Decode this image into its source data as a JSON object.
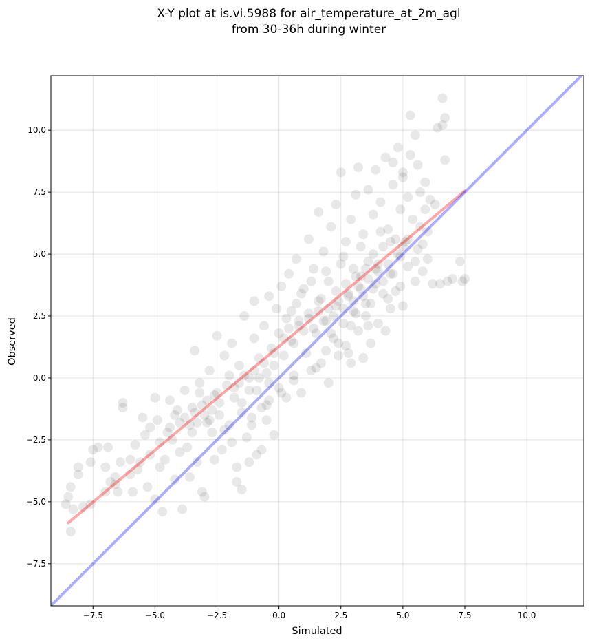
{
  "chart_data": {
    "type": "scatter",
    "title": "X-Y plot at is.vi.5988 for air_temperature_at_2m_agl",
    "subtitle": "from 30-36h during winter",
    "xlabel": "Simulated",
    "ylabel": "Observed",
    "xlim": [
      -9.2,
      12.3
    ],
    "ylim": [
      -9.2,
      12.2
    ],
    "x_ticks": [
      -7.5,
      -5.0,
      -2.5,
      0.0,
      2.5,
      5.0,
      7.5,
      10.0
    ],
    "y_ticks": [
      -7.5,
      -5.0,
      -2.5,
      0.0,
      2.5,
      5.0,
      7.5,
      10.0
    ],
    "x_tick_labels": [
      "−7.5",
      "−5.0",
      "−2.5",
      "0.0",
      "2.5",
      "5.0",
      "7.5",
      "10.0"
    ],
    "y_tick_labels": [
      "−7.5",
      "−5.0",
      "−2.5",
      "0.0",
      "2.5",
      "5.0",
      "7.5",
      "10.0"
    ],
    "grid": true,
    "marker_color": "#000000",
    "marker_alpha": 0.09,
    "fit_line": {
      "color": "#ff0000",
      "alpha": 0.35,
      "x": [
        -8.5,
        7.5
      ],
      "y": [
        -5.85,
        7.55
      ]
    },
    "identity_line": {
      "color": "#0000ff",
      "alpha": 0.33,
      "x": [
        -9.2,
        12.3
      ],
      "y": [
        -9.2,
        12.3
      ]
    },
    "points": [
      [
        -8.6,
        -5.1
      ],
      [
        -8.4,
        -6.2
      ],
      [
        -8.5,
        -4.8
      ],
      [
        -8.3,
        -5.3
      ],
      [
        -8.1,
        -3.9
      ],
      [
        -8.1,
        -3.6
      ],
      [
        -8.4,
        -4.4
      ],
      [
        -7.9,
        -5.2
      ],
      [
        -7.6,
        -3.4
      ],
      [
        -7.5,
        -2.9
      ],
      [
        -7.3,
        -2.8
      ],
      [
        -7.0,
        -3.6
      ],
      [
        -6.9,
        -2.8
      ],
      [
        -6.8,
        -4.2
      ],
      [
        -6.6,
        -4.0
      ],
      [
        -6.5,
        -4.6
      ],
      [
        -6.4,
        -3.4
      ],
      [
        -6.3,
        -1.0
      ],
      [
        -6.3,
        -1.2
      ],
      [
        -6.0,
        -3.3
      ],
      [
        -5.9,
        -4.6
      ],
      [
        -5.8,
        -2.7
      ],
      [
        -5.7,
        -3.7
      ],
      [
        -5.5,
        -1.6
      ],
      [
        -5.3,
        -4.4
      ],
      [
        -5.2,
        -2.0
      ],
      [
        -5.0,
        -4.9
      ],
      [
        -5.0,
        -0.8
      ],
      [
        -4.9,
        -1.7
      ],
      [
        -4.8,
        -3.6
      ],
      [
        -4.7,
        -5.4
      ],
      [
        -4.5,
        -2.2
      ],
      [
        -4.4,
        -0.9
      ],
      [
        -4.3,
        -2.5
      ],
      [
        -4.2,
        -4.1
      ],
      [
        -4.1,
        -1.3
      ],
      [
        -4.0,
        -3.0
      ],
      [
        -3.9,
        -5.3
      ],
      [
        -3.8,
        -0.5
      ],
      [
        -3.7,
        -2.8
      ],
      [
        -3.6,
        -4.0
      ],
      [
        -3.5,
        -1.2
      ],
      [
        -3.4,
        1.1
      ],
      [
        -3.3,
        -3.4
      ],
      [
        -3.2,
        -0.2
      ],
      [
        -3.1,
        -4.6
      ],
      [
        -3.0,
        -4.8
      ],
      [
        -2.9,
        -1.8
      ],
      [
        -2.8,
        0.3
      ],
      [
        -2.7,
        -2.2
      ],
      [
        -2.6,
        -3.3
      ],
      [
        -2.5,
        -0.6
      ],
      [
        -2.5,
        1.7
      ],
      [
        -2.4,
        -1.5
      ],
      [
        -2.3,
        -2.9
      ],
      [
        -2.2,
        0.9
      ],
      [
        -2.1,
        -0.3
      ],
      [
        -2.0,
        -1.9
      ],
      [
        -1.9,
        1.4
      ],
      [
        -1.8,
        -0.8
      ],
      [
        -1.7,
        -3.6
      ],
      [
        -1.7,
        -4.2
      ],
      [
        -1.6,
        0.5
      ],
      [
        -1.5,
        -1.0
      ],
      [
        -1.5,
        -4.5
      ],
      [
        -1.4,
        2.5
      ],
      [
        -1.3,
        -2.4
      ],
      [
        -1.2,
        0.0
      ],
      [
        -1.2,
        -3.4
      ],
      [
        -1.1,
        -1.9
      ],
      [
        -1.0,
        1.6
      ],
      [
        -1.0,
        3.1
      ],
      [
        -0.9,
        -0.5
      ],
      [
        -0.9,
        -3.1
      ],
      [
        -0.8,
        0.8
      ],
      [
        -0.7,
        -1.2
      ],
      [
        -0.7,
        -2.9
      ],
      [
        -0.6,
        2.1
      ],
      [
        -0.5,
        0.2
      ],
      [
        -0.5,
        -1.7
      ],
      [
        -0.4,
        3.3
      ],
      [
        -0.4,
        -0.9
      ],
      [
        -0.3,
        1.2
      ],
      [
        -0.2,
        -2.3
      ],
      [
        -0.2,
        0.5
      ],
      [
        -0.1,
        2.8
      ],
      [
        0.0,
        -0.4
      ],
      [
        0.0,
        1.8
      ],
      [
        0.1,
        3.7
      ],
      [
        0.2,
        0.9
      ],
      [
        0.3,
        -0.8
      ],
      [
        0.3,
        2.4
      ],
      [
        0.4,
        4.2
      ],
      [
        0.5,
        1.5
      ],
      [
        0.6,
        0.1
      ],
      [
        0.7,
        3.0
      ],
      [
        0.7,
        4.8
      ],
      [
        0.8,
        2.1
      ],
      [
        0.9,
        -0.6
      ],
      [
        1.0,
        3.6
      ],
      [
        1.1,
        1.0
      ],
      [
        1.2,
        5.6
      ],
      [
        1.2,
        2.6
      ],
      [
        1.3,
        0.3
      ],
      [
        1.4,
        4.4
      ],
      [
        1.5,
        1.8
      ],
      [
        1.6,
        6.7
      ],
      [
        1.6,
        3.1
      ],
      [
        1.7,
        0.6
      ],
      [
        1.8,
        5.1
      ],
      [
        1.9,
        2.3
      ],
      [
        2.0,
        -0.2
      ],
      [
        2.0,
        3.9
      ],
      [
        2.1,
        6.1
      ],
      [
        2.2,
        1.6
      ],
      [
        2.3,
        2.9
      ],
      [
        2.3,
        7.0
      ],
      [
        2.4,
        0.9
      ],
      [
        2.5,
        4.6
      ],
      [
        2.5,
        8.3
      ],
      [
        2.6,
        2.2
      ],
      [
        2.7,
        5.5
      ],
      [
        2.7,
        1.3
      ],
      [
        2.8,
        3.3
      ],
      [
        2.9,
        6.4
      ],
      [
        2.9,
        0.6
      ],
      [
        3.0,
        2.7
      ],
      [
        3.1,
        4.1
      ],
      [
        3.1,
        7.4
      ],
      [
        3.2,
        8.5
      ],
      [
        3.2,
        1.9
      ],
      [
        3.3,
        3.6
      ],
      [
        3.4,
        5.8
      ],
      [
        3.4,
        0.8
      ],
      [
        3.5,
        2.5
      ],
      [
        3.5,
        4.4
      ],
      [
        3.6,
        7.6
      ],
      [
        3.7,
        3.0
      ],
      [
        3.7,
        1.4
      ],
      [
        3.8,
        5.0
      ],
      [
        3.8,
        6.6
      ],
      [
        3.9,
        8.4
      ],
      [
        3.9,
        3.8
      ],
      [
        4.0,
        2.2
      ],
      [
        4.0,
        4.6
      ],
      [
        4.1,
        7.1
      ],
      [
        4.2,
        3.4
      ],
      [
        4.2,
        5.3
      ],
      [
        4.3,
        1.9
      ],
      [
        4.3,
        8.9
      ],
      [
        4.4,
        6.0
      ],
      [
        4.5,
        4.2
      ],
      [
        4.5,
        2.8
      ],
      [
        4.6,
        7.8
      ],
      [
        4.7,
        5.6
      ],
      [
        4.7,
        3.5
      ],
      [
        4.8,
        9.3
      ],
      [
        4.9,
        6.8
      ],
      [
        4.9,
        4.9
      ],
      [
        5.0,
        2.9
      ],
      [
        5.0,
        8.1
      ],
      [
        5.1,
        5.5
      ],
      [
        5.2,
        7.3
      ],
      [
        5.2,
        4.5
      ],
      [
        5.3,
        9.0
      ],
      [
        5.3,
        10.6
      ],
      [
        5.4,
        6.4
      ],
      [
        5.5,
        9.8
      ],
      [
        5.5,
        3.9
      ],
      [
        5.6,
        5.2
      ],
      [
        5.6,
        8.6
      ],
      [
        5.7,
        7.5
      ],
      [
        5.8,
        4.3
      ],
      [
        5.9,
        6.8
      ],
      [
        6.0,
        5.9
      ],
      [
        6.1,
        7.2
      ],
      [
        6.2,
        3.8
      ],
      [
        6.5,
        3.8
      ],
      [
        6.6,
        11.3
      ],
      [
        6.6,
        10.2
      ],
      [
        6.7,
        10.5
      ],
      [
        6.7,
        8.8
      ],
      [
        6.8,
        3.9
      ],
      [
        7.0,
        4.0
      ],
      [
        7.3,
        4.7
      ],
      [
        7.4,
        3.9
      ],
      [
        7.5,
        4.0
      ],
      [
        6.4,
        10.1
      ],
      [
        5.0,
        8.3
      ],
      [
        4.6,
        8.7
      ],
      [
        -3.8,
        -1.6
      ],
      [
        -3.6,
        -1.9
      ],
      [
        -3.4,
        -1.4
      ],
      [
        -3.3,
        -1.8
      ],
      [
        -3.1,
        -1.1
      ],
      [
        -3.0,
        -1.5
      ],
      [
        -2.9,
        -0.9
      ],
      [
        -2.7,
        -1.3
      ],
      [
        -2.6,
        -0.7
      ],
      [
        -2.4,
        -1.0
      ],
      [
        -4.0,
        -1.8
      ],
      [
        -4.2,
        -1.5
      ],
      [
        -3.5,
        -2.2
      ],
      [
        -2.8,
        -1.7
      ],
      [
        -3.2,
        -0.6
      ],
      [
        -1.6,
        -0.2
      ],
      [
        -1.4,
        0.1
      ],
      [
        -1.2,
        -0.5
      ],
      [
        -1.0,
        0.3
      ],
      [
        -0.8,
        0.0
      ],
      [
        -1.8,
        -0.4
      ],
      [
        -2.0,
        0.1
      ],
      [
        -0.6,
        0.6
      ],
      [
        -0.4,
        -0.2
      ],
      [
        0.2,
        1.6
      ],
      [
        0.4,
        2.0
      ],
      [
        0.6,
        1.4
      ],
      [
        0.8,
        2.3
      ],
      [
        1.0,
        1.9
      ],
      [
        1.2,
        2.4
      ],
      [
        1.4,
        2.0
      ],
      [
        1.6,
        2.7
      ],
      [
        1.8,
        2.3
      ],
      [
        2.0,
        2.8
      ],
      [
        2.2,
        2.5
      ],
      [
        2.4,
        3.1
      ],
      [
        2.6,
        2.8
      ],
      [
        2.8,
        3.4
      ],
      [
        3.0,
        3.1
      ],
      [
        3.2,
        3.7
      ],
      [
        3.4,
        3.3
      ],
      [
        3.6,
        4.0
      ],
      [
        3.8,
        3.6
      ],
      [
        4.0,
        4.3
      ],
      [
        4.2,
        3.9
      ],
      [
        4.4,
        4.6
      ],
      [
        4.6,
        4.2
      ],
      [
        4.8,
        5.0
      ],
      [
        5.0,
        5.3
      ],
      [
        5.2,
        5.6
      ],
      [
        3.0,
        4.4
      ],
      [
        3.3,
        4.1
      ],
      [
        3.6,
        4.7
      ],
      [
        3.9,
        4.4
      ],
      [
        2.7,
        3.8
      ],
      [
        2.3,
        3.5
      ],
      [
        2.9,
        2.1
      ],
      [
        3.1,
        2.6
      ],
      [
        3.5,
        3.0
      ],
      [
        2.1,
        1.8
      ],
      [
        -4.8,
        -2.6
      ],
      [
        -5.2,
        -3.1
      ],
      [
        -5.6,
        -3.4
      ],
      [
        -6.0,
        -3.9
      ],
      [
        -6.6,
        -4.3
      ],
      [
        -7.0,
        -4.6
      ],
      [
        -7.6,
        -5.1
      ],
      [
        -4.4,
        -2.0
      ],
      [
        -4.6,
        -3.3
      ],
      [
        -5.4,
        -2.3
      ],
      [
        0.9,
        3.4
      ],
      [
        1.3,
        3.9
      ],
      [
        0.5,
        2.7
      ],
      [
        -0.2,
        1.0
      ],
      [
        1.7,
        3.2
      ],
      [
        1.9,
        4.3
      ],
      [
        2.6,
        4.9
      ],
      [
        3.3,
        5.3
      ],
      [
        4.1,
        5.9
      ],
      [
        4.5,
        5.5
      ],
      [
        -2.2,
        -2.1
      ],
      [
        -1.9,
        -2.6
      ],
      [
        -1.5,
        -1.4
      ],
      [
        -1.1,
        -1.6
      ],
      [
        -0.5,
        -1.1
      ],
      [
        0.1,
        -0.6
      ],
      [
        0.6,
        -0.1
      ],
      [
        1.5,
        0.4
      ],
      [
        1.9,
        1.1
      ],
      [
        2.4,
        1.4
      ],
      [
        2.8,
        1.0
      ],
      [
        3.6,
        2.1
      ],
      [
        4.4,
        3.2
      ],
      [
        4.9,
        3.7
      ],
      [
        5.5,
        4.7
      ],
      [
        5.8,
        5.4
      ],
      [
        6.0,
        4.8
      ],
      [
        5.7,
        6.1
      ],
      [
        5.9,
        7.9
      ],
      [
        6.3,
        7.0
      ]
    ]
  }
}
